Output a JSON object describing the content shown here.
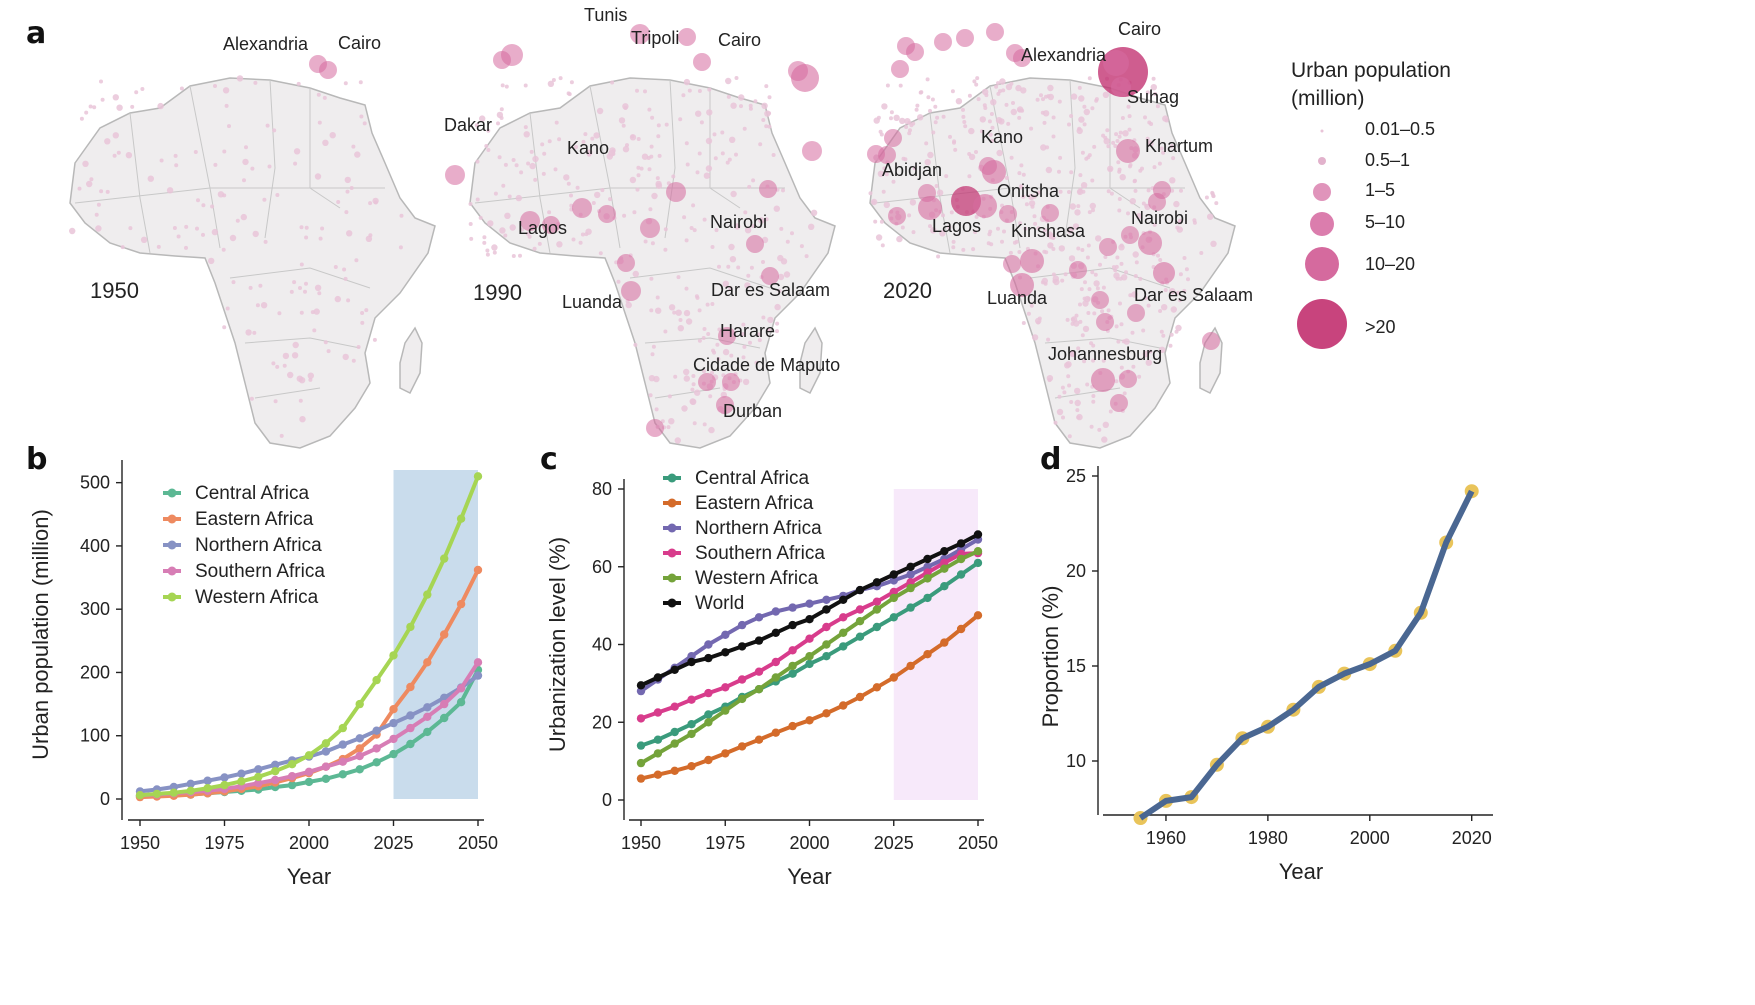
{
  "panels": {
    "a": "a",
    "b": "b",
    "c": "c",
    "d": "d"
  },
  "colors": {
    "map_land": "#efedee",
    "map_border": "#b8b8b8",
    "bubble": "#d56a9e",
    "bubble_big": "#c2306f",
    "dot": "#e9c4d8",
    "central": "#5cb894",
    "eastern": "#ee8a60",
    "northern": "#8792c4",
    "southern": "#d77db5",
    "western": "#a6d553",
    "c_central": "#3a9b7c",
    "c_eastern": "#d46b2a",
    "c_northern": "#7368b0",
    "c_southern": "#d83c8c",
    "c_western": "#74a33a",
    "c_world": "#111111",
    "shade_b": "#c9dcec",
    "shade_c": "#f7e9fa",
    "d_line": "#4a6792",
    "d_dot": "#e9c45a"
  },
  "maps": {
    "years": [
      "1950",
      "1990",
      "2020"
    ],
    "map1950": {
      "labels": [
        "Alexandria",
        "Cairo"
      ]
    },
    "map1990": {
      "labels": [
        "Tunis",
        "Tripoli",
        "Cairo",
        "Dakar",
        "Kano",
        "Lagos",
        "Nairobi",
        "Luanda",
        "Dar es Salaam",
        "Harare",
        "Cidade de Maputo",
        "Durban"
      ]
    },
    "map2020": {
      "labels": [
        "Cairo",
        "Alexandria",
        "Suhag",
        "Khartum",
        "Kano",
        "Abidjan",
        "Onitsha",
        "Lagos",
        "Kinshasa",
        "Nairobi",
        "Luanda",
        "Dar es Salaam",
        "Johannesburg"
      ]
    }
  },
  "legend_a": {
    "title_line1": "Urban population",
    "title_line2": "(million)",
    "items": [
      "0.01–0.5",
      "0.5–1",
      "1–5",
      "5–10",
      "10–20",
      ">20"
    ]
  },
  "chart_data": [
    {
      "panel": "b",
      "type": "line",
      "xlabel": "Year",
      "ylabel": "Urban population (million)",
      "xlim": [
        1950,
        2050
      ],
      "ylim": [
        0,
        520
      ],
      "xticks": [
        "1950",
        "1975",
        "2000",
        "2025",
        "2050"
      ],
      "yticks": [
        "0",
        "100",
        "200",
        "300",
        "400",
        "500"
      ],
      "shaded_range": [
        2025,
        2050
      ],
      "legend_position": "top-left",
      "x": [
        1950,
        1955,
        1960,
        1965,
        1970,
        1975,
        1980,
        1985,
        1990,
        1995,
        2000,
        2005,
        2010,
        2015,
        2020,
        2025,
        2030,
        2035,
        2040,
        2045,
        2050
      ],
      "series": [
        {
          "name": "Central Africa",
          "color": "#5cb894",
          "values": [
            4,
            5,
            6,
            7,
            9,
            11,
            13,
            15,
            19,
            22,
            27,
            32,
            39,
            47,
            58,
            71,
            87,
            106,
            128,
            153,
            204
          ]
        },
        {
          "name": "Eastern Africa",
          "color": "#ee8a60",
          "values": [
            3,
            4,
            5,
            7,
            9,
            12,
            16,
            20,
            26,
            33,
            41,
            51,
            63,
            80,
            102,
            142,
            177,
            216,
            260,
            308,
            362
          ]
        },
        {
          "name": "Northern Africa",
          "color": "#8792c4",
          "values": [
            12,
            15,
            19,
            24,
            29,
            34,
            40,
            47,
            54,
            61,
            67,
            75,
            86,
            96,
            108,
            120,
            132,
            145,
            160,
            176,
            195
          ]
        },
        {
          "name": "Southern Africa",
          "color": "#d77db5",
          "values": [
            6,
            7,
            9,
            11,
            13,
            16,
            20,
            25,
            30,
            36,
            43,
            51,
            59,
            68,
            80,
            95,
            112,
            130,
            150,
            175,
            216
          ]
        },
        {
          "name": "Western Africa",
          "color": "#a6d553",
          "values": [
            6,
            8,
            10,
            13,
            17,
            22,
            28,
            35,
            44,
            55,
            69,
            88,
            112,
            150,
            188,
            227,
            272,
            323,
            380,
            443,
            510
          ]
        }
      ]
    },
    {
      "panel": "c",
      "type": "line",
      "xlabel": "Year",
      "ylabel": "Urbanization level (%)",
      "xlim": [
        1950,
        2050
      ],
      "ylim": [
        0,
        80
      ],
      "xticks": [
        "1950",
        "1975",
        "2000",
        "2025",
        "2050"
      ],
      "yticks": [
        "0",
        "20",
        "40",
        "60",
        "80"
      ],
      "shaded_range": [
        2025,
        2050
      ],
      "legend_position": "top-left",
      "x": [
        1950,
        1955,
        1960,
        1965,
        1970,
        1975,
        1980,
        1985,
        1990,
        1995,
        2000,
        2005,
        2010,
        2015,
        2020,
        2025,
        2030,
        2035,
        2040,
        2045,
        2050
      ],
      "series": [
        {
          "name": "Central Africa",
          "color": "#3a9b7c",
          "values": [
            14,
            15.5,
            17.5,
            19.5,
            22,
            24,
            26.5,
            28.5,
            30.5,
            32.5,
            35,
            37,
            39.5,
            42,
            44.5,
            47,
            49.5,
            52,
            55,
            58,
            61
          ]
        },
        {
          "name": "Eastern Africa",
          "color": "#d46b2a",
          "values": [
            5.5,
            6.5,
            7.5,
            8.7,
            10.3,
            12,
            13.8,
            15.5,
            17.3,
            19,
            20.5,
            22.3,
            24.3,
            26.5,
            29,
            31.5,
            34.5,
            37.5,
            40.5,
            44,
            47.5
          ]
        },
        {
          "name": "Northern Africa",
          "color": "#7368b0",
          "values": [
            28,
            31,
            34,
            37,
            40,
            42.5,
            45,
            47,
            48.5,
            49.5,
            50.5,
            51.5,
            52.5,
            54,
            55,
            56.5,
            58,
            60,
            62,
            64.5,
            67
          ]
        },
        {
          "name": "Southern Africa",
          "color": "#d83c8c",
          "values": [
            21,
            22.5,
            24,
            25.8,
            27.5,
            29,
            31,
            33,
            35.5,
            38.5,
            41.5,
            44.5,
            47,
            49,
            51,
            53.5,
            56,
            58.5,
            61,
            63.3,
            63.5
          ]
        },
        {
          "name": "Western Africa",
          "color": "#74a33a",
          "values": [
            9.5,
            12,
            14.5,
            17,
            20,
            23,
            26,
            28.5,
            31.5,
            34.5,
            37,
            40,
            43,
            46,
            49,
            52,
            54.5,
            57,
            59.5,
            62,
            64
          ]
        },
        {
          "name": "World",
          "color": "#111111",
          "values": [
            29.5,
            31.5,
            33.5,
            35.5,
            36.5,
            38,
            39.5,
            41,
            43,
            45,
            46.5,
            49,
            51.5,
            54,
            56,
            58,
            60,
            62,
            64,
            66,
            68.3
          ]
        }
      ]
    },
    {
      "panel": "d",
      "type": "line",
      "xlabel": "Year",
      "ylabel": "Proportion (%)",
      "xlim": [
        1950,
        2023
      ],
      "ylim": [
        6,
        25
      ],
      "xticks": [
        "1960",
        "1980",
        "2000",
        "2020"
      ],
      "yticks": [
        "10",
        "15",
        "20",
        "25"
      ],
      "x": [
        1955,
        1960,
        1965,
        1970,
        1975,
        1980,
        1985,
        1990,
        1995,
        2000,
        2005,
        2010,
        2015,
        2020
      ],
      "values": [
        7.0,
        7.9,
        8.1,
        9.8,
        11.2,
        11.8,
        12.7,
        13.9,
        14.6,
        15.1,
        15.8,
        17.8,
        21.5,
        24.2
      ]
    }
  ]
}
